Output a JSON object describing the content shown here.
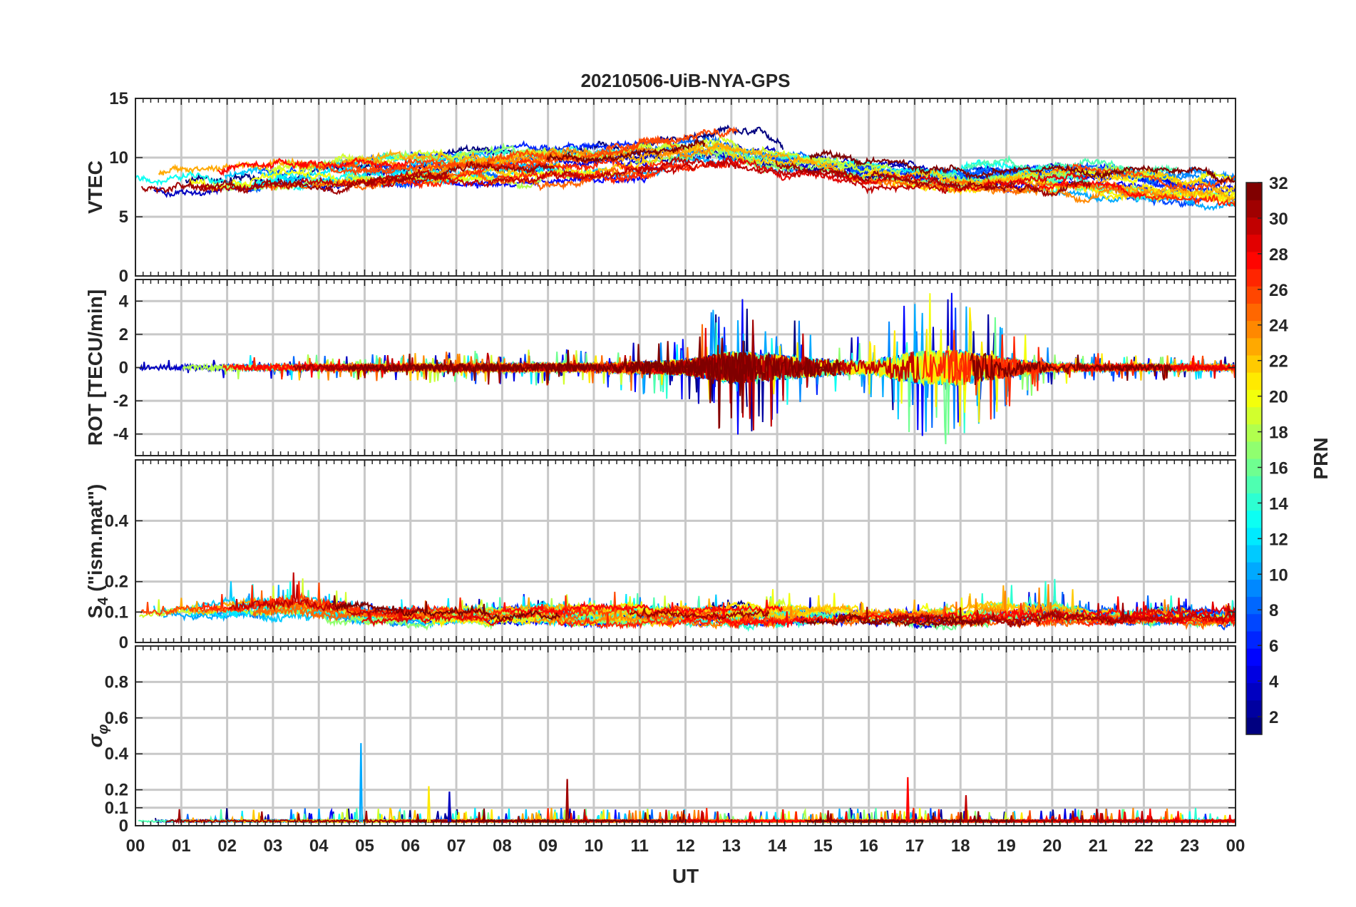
{
  "chart_data": {
    "type": "line",
    "title": "20210506-UiB-NYA-GPS",
    "xlabel": "UT",
    "x_ticks": [
      "00",
      "01",
      "02",
      "03",
      "04",
      "05",
      "06",
      "07",
      "08",
      "09",
      "10",
      "11",
      "12",
      "13",
      "14",
      "15",
      "16",
      "17",
      "18",
      "19",
      "20",
      "21",
      "22",
      "23",
      "00"
    ],
    "x_range_hours": [
      0,
      24
    ],
    "grid": true,
    "colorbar": {
      "label": "PRN",
      "range": [
        1,
        32
      ],
      "ticks": [
        "32",
        "30",
        "28",
        "26",
        "24",
        "22",
        "20",
        "18",
        "16",
        "14",
        "12",
        "10",
        "8",
        "6",
        "4",
        "2"
      ],
      "colormap": "jet"
    },
    "panels": [
      {
        "id": "vtec",
        "ylabel": "VTEC",
        "ylim": [
          0,
          15
        ],
        "y_ticks": [
          "15",
          "10",
          "5",
          "0"
        ],
        "y_tick_values": [
          15,
          10,
          5,
          0
        ],
        "envelope": {
          "hours": [
            0,
            2,
            4,
            6,
            8,
            10,
            12,
            13,
            14,
            16,
            18,
            20,
            22,
            24
          ],
          "mean": [
            7.8,
            8.2,
            8.5,
            9.0,
            9.3,
            9.5,
            10.3,
            10.2,
            9.6,
            8.5,
            8.0,
            8.3,
            7.8,
            7.5
          ],
          "spread": [
            1.0,
            1.2,
            1.2,
            1.2,
            1.2,
            1.2,
            1.2,
            1.5,
            1.2,
            1.0,
            1.2,
            1.2,
            1.2,
            1.5
          ]
        }
      },
      {
        "id": "rot",
        "ylabel": "ROT [TECU/min]",
        "ylim": [
          -5.3,
          5.3
        ],
        "y_ticks": [
          "4",
          "2",
          "0",
          "-2",
          "-4"
        ],
        "y_tick_values": [
          4,
          2,
          0,
          -2,
          -4
        ],
        "envelope": {
          "hours": [
            0,
            6,
            8,
            10,
            12,
            13,
            14,
            15,
            16,
            17,
            18,
            19,
            20,
            21,
            24
          ],
          "mean": [
            0,
            0,
            0,
            0,
            0,
            0,
            0,
            0,
            0,
            0,
            0,
            0,
            0,
            0,
            0
          ],
          "spread": [
            0.3,
            0.4,
            0.5,
            0.5,
            1.0,
            2.0,
            1.6,
            1.0,
            0.8,
            2.0,
            2.2,
            1.2,
            0.5,
            0.4,
            0.3
          ]
        }
      },
      {
        "id": "s4",
        "ylabel": "S4 (\"ism.mat\")",
        "ylabel_main": "S",
        "ylabel_sub": "4",
        "ylabel_rest": " (\"ism.mat\")",
        "ylim": [
          0,
          0.6
        ],
        "y_ticks": [
          "0.4",
          "0.2",
          "0.1",
          "0"
        ],
        "y_tick_values": [
          0.4,
          0.2,
          0.1,
          0
        ],
        "envelope": {
          "hours": [
            0,
            2,
            3.5,
            5,
            8,
            10,
            12,
            14,
            16,
            18,
            20,
            21,
            24
          ],
          "mean": [
            0.08,
            0.09,
            0.1,
            0.08,
            0.08,
            0.08,
            0.08,
            0.08,
            0.08,
            0.08,
            0.09,
            0.08,
            0.08
          ],
          "spread": [
            0.04,
            0.05,
            0.08,
            0.04,
            0.04,
            0.05,
            0.04,
            0.05,
            0.04,
            0.05,
            0.07,
            0.04,
            0.05
          ]
        }
      },
      {
        "id": "sigma_phi",
        "ylabel": "σ φ",
        "ylabel_main": "σ",
        "ylabel_sub": "φ",
        "ylim": [
          0,
          1.0
        ],
        "y_ticks": [
          "0.8",
          "0.6",
          "0.4",
          "0.2",
          "0.1",
          "0"
        ],
        "y_tick_values": [
          0.8,
          0.6,
          0.4,
          0.2,
          0.1,
          0
        ],
        "envelope": {
          "hours": [
            0,
            24
          ],
          "mean": [
            0.02,
            0.02
          ],
          "spread": [
            0.015,
            0.015
          ]
        },
        "spikes": [
          {
            "hour": 4.92,
            "value": 0.46,
            "prn": 10
          },
          {
            "hour": 9.42,
            "value": 0.26,
            "prn": 31
          },
          {
            "hour": 16.85,
            "value": 0.27,
            "prn": 28
          },
          {
            "hour": 18.12,
            "value": 0.17,
            "prn": 30
          },
          {
            "hour": 6.4,
            "value": 0.22,
            "prn": 21
          },
          {
            "hour": 6.85,
            "value": 0.19,
            "prn": 3
          }
        ]
      }
    ],
    "satellites_shown": 32
  }
}
